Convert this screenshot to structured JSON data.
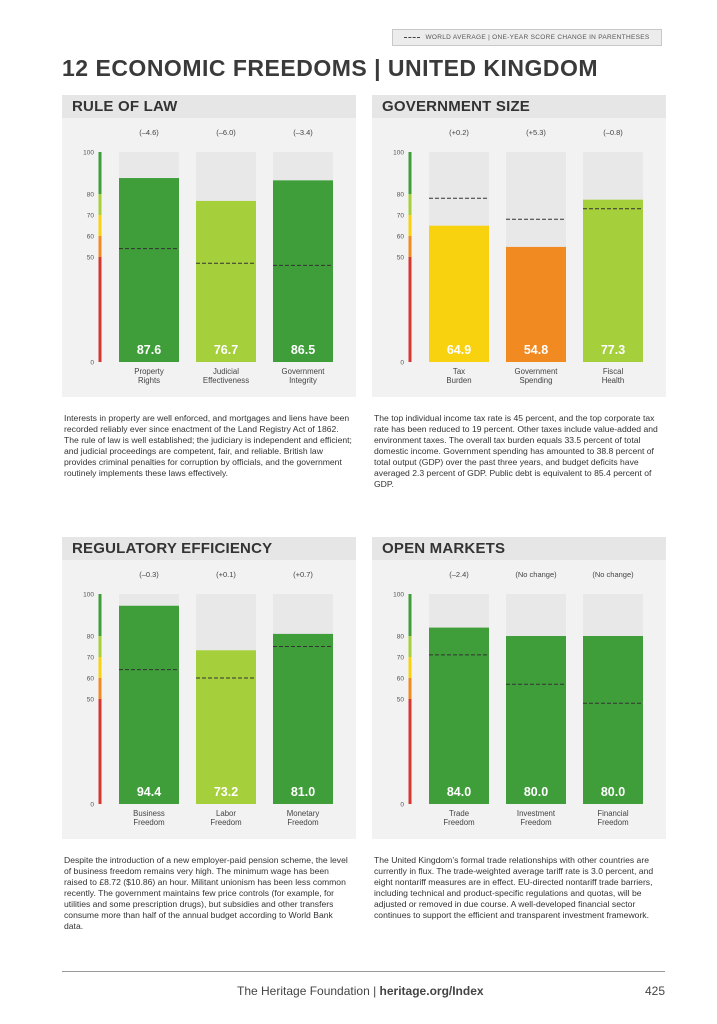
{
  "legend": {
    "text": "WORLD AVERAGE  |  ONE-YEAR SCORE CHANGE IN PARENTHESES"
  },
  "title": "12 ECONOMIC FREEDOMS  |  UNITED KINGDOM",
  "colors": {
    "dark_green": "#3f9e3a",
    "light_green": "#a5cf3b",
    "yellow": "#f9d20f",
    "orange": "#f28a22",
    "red": "#d73530",
    "band_bg": "#e8e8e8"
  },
  "panels": [
    {
      "title": "RULE OF LAW",
      "text": "Interests in property are well enforced, and mortgages and liens have been recorded reliably ever since enactment of the Land Registry Act of 1862. The rule of law is well established; the judiciary is independent and efficient; and judicial proceedings are competent, fair, and reliable. British law provides criminal penalties for corruption by officials, and the government routinely implements these laws effectively."
    },
    {
      "title": "GOVERNMENT SIZE",
      "text": "The top individual income tax rate is 45 percent, and the top corporate tax rate has been reduced to 19 percent. Other taxes include value-added and environment taxes. The overall tax burden equals 33.5 percent of total domestic income. Government spending has amounted to 38.8 percent of total output (GDP) over the past three years, and budget deficits have averaged 2.3 percent of GDP. Public debt is equivalent to 85.4 percent of GDP."
    },
    {
      "title": "REGULATORY EFFICIENCY",
      "text": "Despite the introduction of a new employer-paid pension scheme, the level of business freedom remains very high. The minimum wage has been raised to £8.72 ($10.86) an hour. Militant unionism has been less common recently. The government maintains few price controls (for example, for utilities and some prescription drugs), but subsidies and other transfers consume more than half of the annual budget according to World Bank data."
    },
    {
      "title": "OPEN MARKETS",
      "text": "The United Kingdom’s formal trade relationships with other countries are currently in flux. The trade-weighted average tariff rate is 3.0 percent, and eight nontariff measures are in effect. EU-directed nontariff trade barriers, including technical and product-specific regulations and quotas, will be adjusted or removed in due course. A well-developed financial sector continues to support the efficient and transparent investment framework."
    }
  ],
  "chart_data": [
    {
      "type": "bar",
      "title": "RULE OF LAW",
      "categories": [
        [
          "Property",
          "Rights"
        ],
        [
          "Judicial",
          "Effectiveness"
        ],
        [
          "Government",
          "Integrity"
        ]
      ],
      "values": [
        87.6,
        76.7,
        86.5
      ],
      "value_labels": [
        "87.6",
        "76.7",
        "86.5"
      ],
      "changes": [
        "(–4.6)",
        "(–6.0)",
        "(–3.4)"
      ],
      "world_average": [
        54,
        47,
        46
      ],
      "bar_colors": [
        "#3f9e3a",
        "#a5cf3b",
        "#3f9e3a"
      ],
      "yticks": [
        "100",
        "80",
        "70",
        "60",
        "50",
        "0"
      ],
      "ylim": [
        0,
        100
      ]
    },
    {
      "type": "bar",
      "title": "GOVERNMENT SIZE",
      "categories": [
        [
          "Tax",
          "Burden"
        ],
        [
          "Government",
          "Spending"
        ],
        [
          "Fiscal",
          "Health"
        ]
      ],
      "values": [
        64.9,
        54.8,
        77.3
      ],
      "value_labels": [
        "64.9",
        "54.8",
        "77.3"
      ],
      "changes": [
        "(+0.2)",
        "(+5.3)",
        "(–0.8)"
      ],
      "world_average": [
        78,
        68,
        73
      ],
      "bar_colors": [
        "#f9d20f",
        "#f28a22",
        "#a5cf3b"
      ],
      "yticks": [
        "100",
        "80",
        "70",
        "60",
        "50",
        "0"
      ],
      "ylim": [
        0,
        100
      ]
    },
    {
      "type": "bar",
      "title": "REGULATORY EFFICIENCY",
      "categories": [
        [
          "Business",
          "Freedom"
        ],
        [
          "Labor",
          "Freedom"
        ],
        [
          "Monetary",
          "Freedom"
        ]
      ],
      "values": [
        94.4,
        73.2,
        81.0
      ],
      "value_labels": [
        "94.4",
        "73.2",
        "81.0"
      ],
      "changes": [
        "(–0.3)",
        "(+0.1)",
        "(+0.7)"
      ],
      "world_average": [
        64,
        60,
        75
      ],
      "bar_colors": [
        "#3f9e3a",
        "#a5cf3b",
        "#3f9e3a"
      ],
      "yticks": [
        "100",
        "80",
        "70",
        "60",
        "50",
        "0"
      ],
      "ylim": [
        0,
        100
      ]
    },
    {
      "type": "bar",
      "title": "OPEN MARKETS",
      "categories": [
        [
          "Trade",
          "Freedom"
        ],
        [
          "Investment",
          "Freedom"
        ],
        [
          "Financial",
          "Freedom"
        ]
      ],
      "values": [
        84.0,
        80.0,
        80.0
      ],
      "value_labels": [
        "84.0",
        "80.0",
        "80.0"
      ],
      "changes": [
        "(–2.4)",
        "(No change)",
        "(No change)"
      ],
      "world_average": [
        71,
        57,
        48
      ],
      "bar_colors": [
        "#3f9e3a",
        "#3f9e3a",
        "#3f9e3a"
      ],
      "yticks": [
        "100",
        "80",
        "70",
        "60",
        "50",
        "0"
      ],
      "ylim": [
        0,
        100
      ]
    }
  ],
  "footer": {
    "org": "The Heritage Foundation | ",
    "url": "heritage.org/Index",
    "page": "425"
  }
}
